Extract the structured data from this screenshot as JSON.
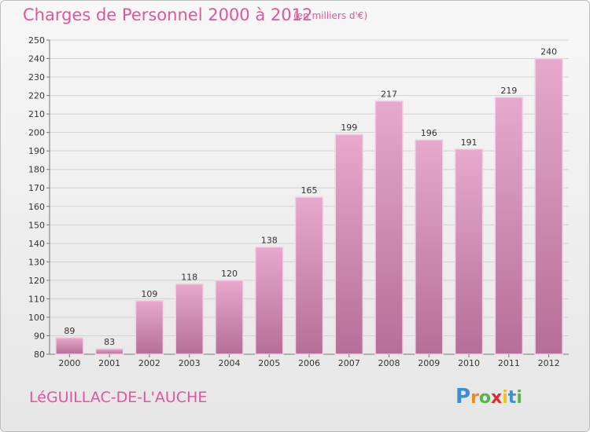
{
  "header": {
    "title": "Charges de Personnel 2000 à 2012",
    "unit": "(en milliers d'€)"
  },
  "footer": {
    "place": "LéGUILLAC-DE-L'AUCHE",
    "logo": "Proxiti"
  },
  "colors": {
    "accent": "#e0569c",
    "bar_top": "#e7a9cc",
    "bar_bottom": "#b56e98"
  },
  "chart_data": {
    "type": "bar",
    "title": "Charges de Personnel 2000 à 2012",
    "subtitle": "(en milliers d'€)",
    "categories": [
      "2000",
      "2001",
      "2002",
      "2003",
      "2004",
      "2005",
      "2006",
      "2007",
      "2008",
      "2009",
      "2010",
      "2011",
      "2012"
    ],
    "values": [
      89,
      83,
      109,
      118,
      120,
      138,
      165,
      199,
      217,
      196,
      191,
      219,
      240
    ],
    "ylim": [
      80,
      250
    ],
    "yticks": [
      80,
      90,
      100,
      110,
      120,
      130,
      140,
      150,
      160,
      170,
      180,
      190,
      200,
      210,
      220,
      230,
      240,
      250
    ],
    "grid": true,
    "xlabel": "",
    "ylabel": ""
  }
}
